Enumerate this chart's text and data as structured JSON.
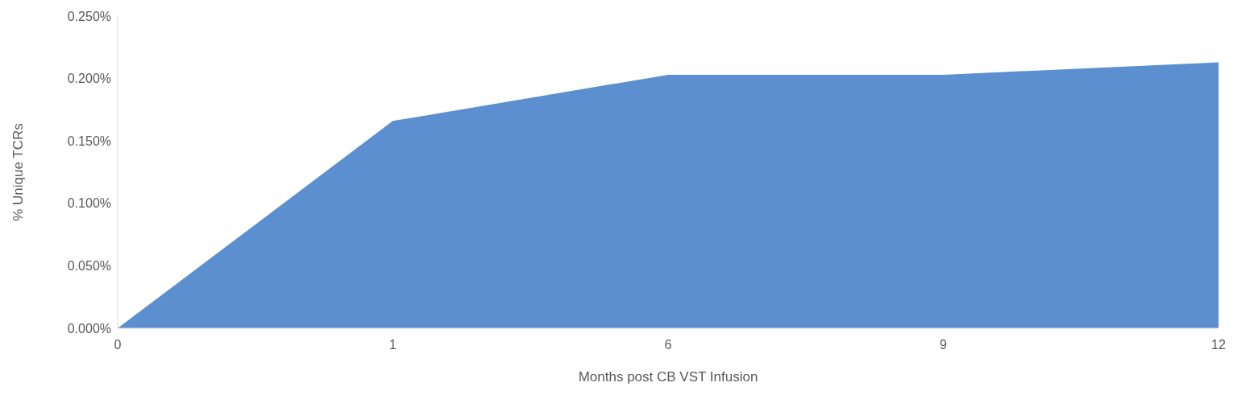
{
  "chart_data": {
    "type": "area",
    "xlabel": "Months post CB VST Infusion",
    "ylabel": "% Unique TCRs",
    "categories": [
      "0",
      "1",
      "6",
      "9",
      "12"
    ],
    "series": [
      {
        "color": "#5b8fd0",
        "values": [
          0,
          0.166,
          0.203,
          0.203,
          0.213
        ]
      }
    ],
    "ylim": [
      0,
      0.25
    ],
    "yticks": [
      {
        "value": 0,
        "label": "0.000%"
      },
      {
        "value": 0.05,
        "label": "0.050%"
      },
      {
        "value": 0.1,
        "label": "0.100%"
      },
      {
        "value": 0.15,
        "label": "0.150%"
      },
      {
        "value": 0.2,
        "label": "0.200%"
      },
      {
        "value": 0.25,
        "label": "0.250%"
      }
    ],
    "grid": false
  }
}
